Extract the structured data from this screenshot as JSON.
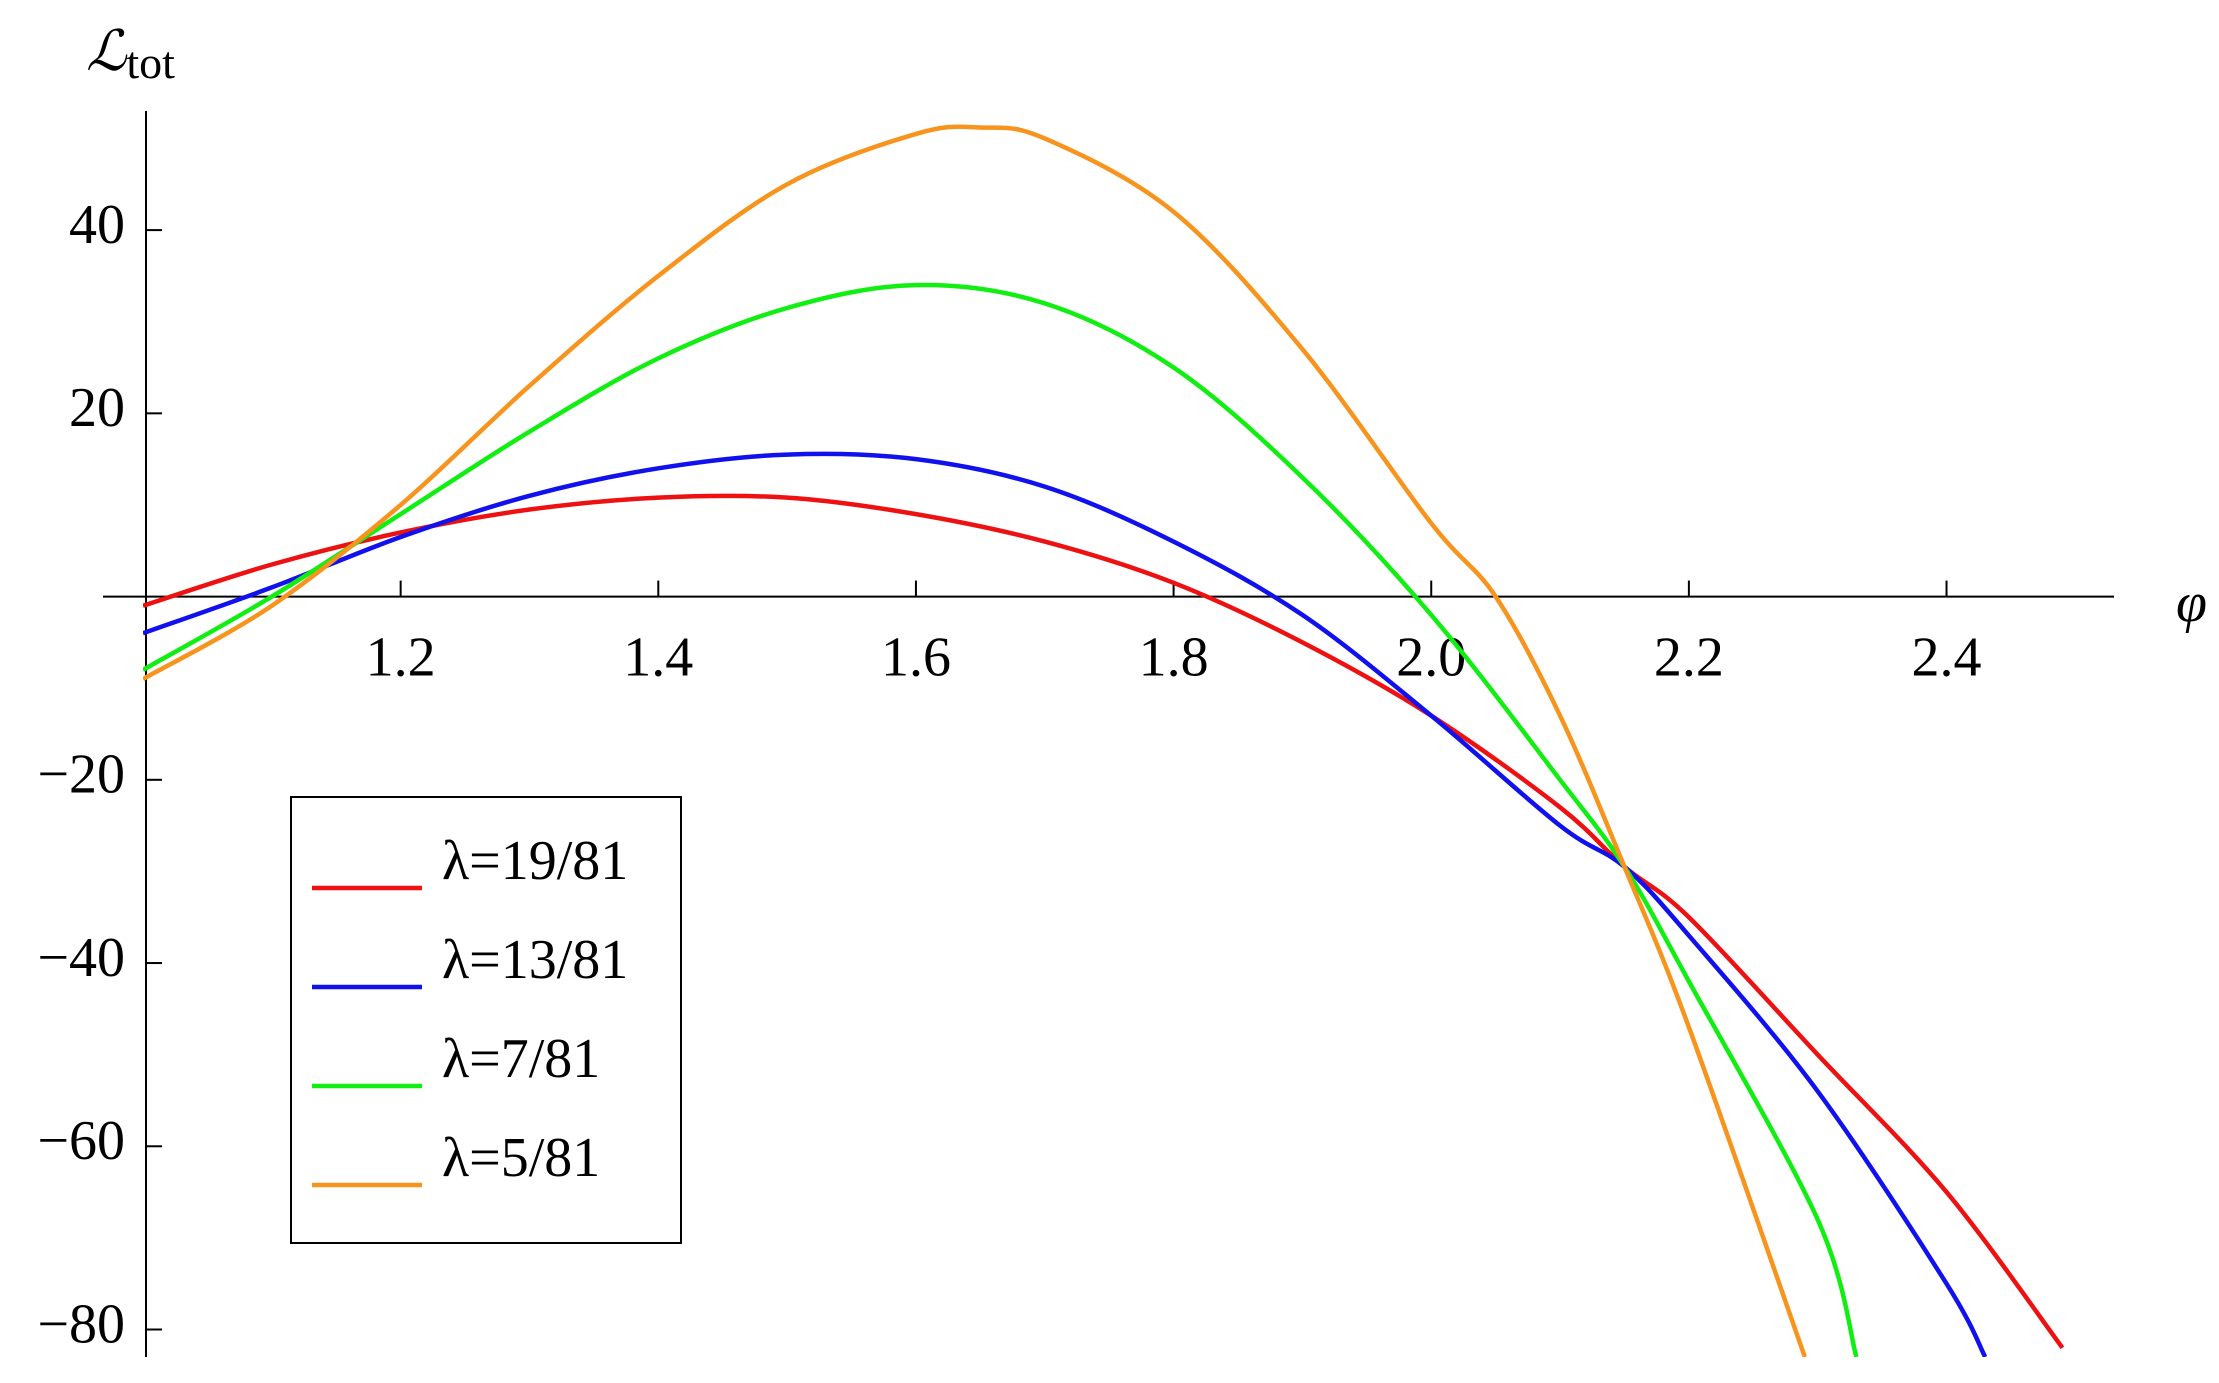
{
  "chart_data": {
    "type": "line",
    "xlabel": "φ",
    "ylabel": "ℒ",
    "ylabel_subscript": "tot",
    "xlim": [
      1.0,
      2.53
    ],
    "ylim": [
      -83,
      53
    ],
    "xticks": [
      1.2,
      1.4,
      1.6,
      1.8,
      {
        "value": 2,
        "label": "2.0"
      },
      2.2,
      2.4
    ],
    "yticks": [
      {
        "value": -80,
        "label": "−80"
      },
      {
        "value": -60,
        "label": "−60"
      },
      {
        "value": -40,
        "label": "−40"
      },
      {
        "value": -20,
        "label": "−20"
      },
      20,
      40
    ],
    "legend": "lower-left",
    "series": [
      {
        "name": "λ=19/81",
        "color": "#ee1111",
        "x": [
          1.0,
          1.1,
          1.2,
          1.3,
          1.4,
          1.5,
          1.6,
          1.7,
          1.8,
          1.9,
          2.0,
          2.1,
          2.15,
          2.2,
          2.3,
          2.4,
          2.49
        ],
        "values": [
          -1,
          3.5,
          7,
          9.5,
          10.8,
          10.8,
          9,
          6,
          1.5,
          -5,
          -13,
          -23,
          -29.5,
          -35,
          -50,
          -65,
          -82
        ]
      },
      {
        "name": "λ=13/81",
        "color": "#1111ee",
        "x": [
          1.0,
          1.1,
          1.2,
          1.3,
          1.4,
          1.5,
          1.6,
          1.7,
          1.8,
          1.9,
          2.0,
          2.1,
          2.15,
          2.2,
          2.3,
          2.4,
          2.43
        ],
        "values": [
          -4,
          1,
          6.5,
          11,
          14,
          15.5,
          15,
          12,
          6,
          -2,
          -13,
          -25,
          -29.5,
          -37,
          -54,
          -75,
          -83
        ]
      },
      {
        "name": "λ=7/81",
        "color": "#11ee11",
        "x": [
          1.0,
          1.1,
          1.2,
          1.3,
          1.4,
          1.5,
          1.6,
          1.7,
          1.8,
          1.9,
          2.0,
          2.1,
          2.15,
          2.2,
          2.3,
          2.33
        ],
        "values": [
          -8,
          0,
          9,
          18,
          26,
          31.5,
          34,
          32,
          25,
          13,
          -2,
          -20,
          -29.5,
          -42,
          -68,
          -83
        ]
      },
      {
        "name": "λ=5/81",
        "color": "#f7941d",
        "x": [
          1.0,
          1.1,
          1.2,
          1.3,
          1.4,
          1.5,
          1.6,
          1.65,
          1.7,
          1.8,
          1.9,
          2.0,
          2.05,
          2.1,
          2.15,
          2.2,
          2.29
        ],
        "values": [
          -9,
          -1,
          10,
          23,
          35,
          45,
          50.5,
          51.2,
          50,
          42,
          27,
          8,
          0,
          -13,
          -29.5,
          -47,
          -83
        ]
      }
    ]
  }
}
